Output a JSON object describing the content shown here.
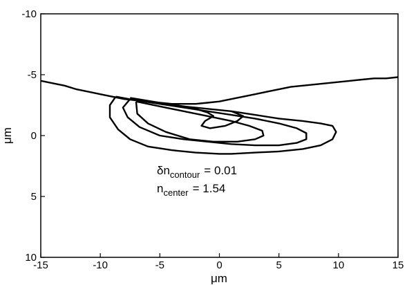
{
  "chart_data": {
    "type": "line",
    "xlabel": "μm",
    "ylabel": "μm",
    "xlim": [
      -15,
      15
    ],
    "ylim": [
      -10,
      10
    ],
    "y_inverted": true,
    "xticks": [
      "-15",
      "-10",
      "-5",
      "0",
      "5",
      "10",
      "15"
    ],
    "yticks": [
      "-10",
      "-5",
      "0",
      "5",
      "10"
    ],
    "grid": false,
    "annotations": {
      "line1": {
        "symbol": "δn",
        "subscript": "contour",
        "equals": "= 0.01"
      },
      "line2": {
        "symbol": "n",
        "subscript": "center",
        "equals": "= 1.54"
      }
    },
    "series": [
      {
        "x": [
          -15,
          -14,
          -13,
          -12,
          -11,
          -10,
          -9,
          -8,
          -7,
          -6,
          -5,
          -4,
          -3,
          -2,
          -1,
          0,
          1,
          2,
          3,
          4,
          5,
          6,
          7,
          8,
          9,
          10,
          11,
          12,
          13,
          14,
          15
        ],
        "y": [
          -4.5,
          -4.3,
          -4.1,
          -3.8,
          -3.6,
          -3.4,
          -3.2,
          -3.0,
          -2.9,
          -2.8,
          -2.7,
          -2.6,
          -2.6,
          -2.6,
          -2.7,
          -2.8,
          -3.0,
          -3.2,
          -3.4,
          -3.6,
          -3.8,
          -4.0,
          -4.1,
          -4.2,
          -4.3,
          -4.4,
          -4.5,
          -4.6,
          -4.7,
          -4.7,
          -4.8
        ]
      },
      {
        "x": [
          -8.7,
          -7,
          -5,
          -3,
          -1,
          1,
          3,
          5,
          7,
          8.5,
          9.5,
          9.8,
          9.5,
          8.5,
          7,
          5,
          3,
          1,
          0,
          -2,
          -4,
          -6,
          -7.5,
          -8.5,
          -9.2,
          -9.2,
          -8.7
        ],
        "y": [
          -3.2,
          -2.9,
          -2.6,
          -2.4,
          -2.2,
          -2.0,
          -1.7,
          -1.4,
          -1.2,
          -1.0,
          -0.8,
          -0.3,
          0.3,
          0.8,
          1.1,
          1.3,
          1.4,
          1.5,
          1.5,
          1.4,
          1.2,
          0.9,
          0.3,
          -0.5,
          -1.5,
          -2.5,
          -3.2
        ]
      },
      {
        "x": [
          -7.5,
          -5,
          -3,
          -1,
          1,
          3,
          5,
          6.5,
          7.3,
          7.3,
          6.5,
          5,
          3,
          1,
          -1,
          -3,
          -5,
          -6.7,
          -7.7,
          -8.1,
          -7.5
        ],
        "y": [
          -3.0,
          -2.6,
          -2.3,
          -2.0,
          -1.7,
          -1.4,
          -1.0,
          -0.6,
          -0.2,
          0.3,
          0.6,
          0.8,
          0.8,
          0.7,
          0.5,
          0.3,
          0.0,
          -0.7,
          -1.5,
          -2.3,
          -3.0
        ]
      },
      {
        "x": [
          -7.0,
          -5,
          -3,
          -1,
          1,
          2.5,
          3.6,
          3.7,
          3,
          1.5,
          -0.5,
          -2.5,
          -4.5,
          -6,
          -6.9,
          -7.0
        ],
        "y": [
          -2.8,
          -2.4,
          -2.0,
          -1.6,
          -1.2,
          -0.8,
          -0.4,
          0.0,
          0.3,
          0.5,
          0.5,
          0.3,
          -0.3,
          -1.0,
          -1.8,
          -2.8
        ]
      },
      {
        "x": [
          -7.5,
          -5,
          -3,
          -2,
          -1,
          -0.5,
          -1.2,
          -1.5,
          -0.8,
          0.5,
          1.5,
          2.0,
          1.0
        ],
        "y": [
          -3.1,
          -2.7,
          -2.4,
          -2.2,
          -1.9,
          -1.6,
          -1.2,
          -0.8,
          -0.6,
          -0.8,
          -1.2,
          -1.6,
          -2.0
        ]
      }
    ]
  }
}
